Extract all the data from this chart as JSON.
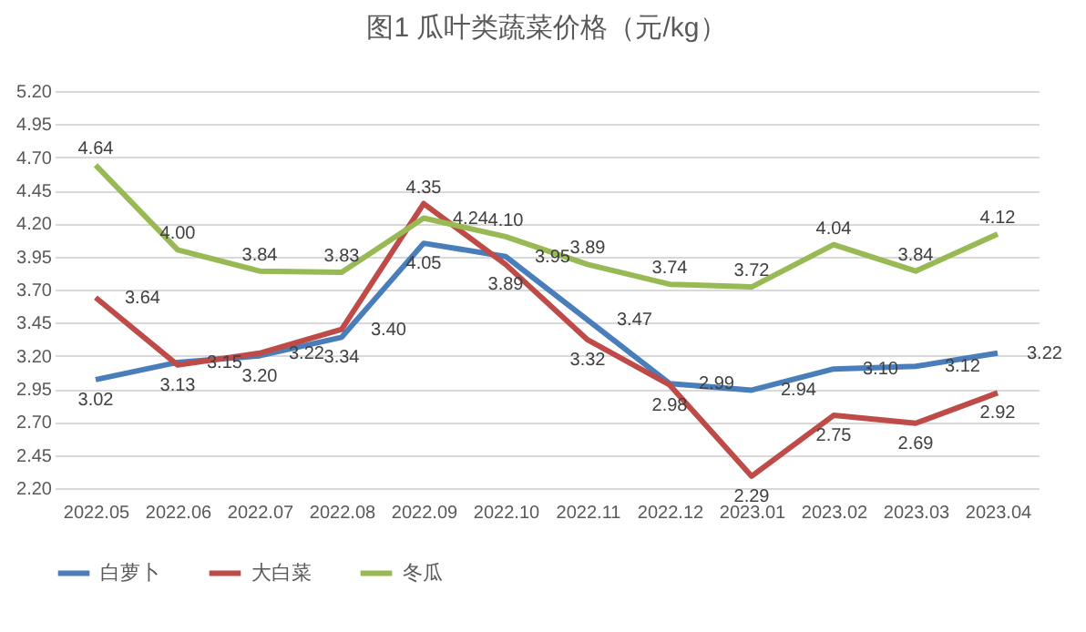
{
  "chart_data": {
    "type": "line",
    "title": "图1  瓜叶类蔬菜价格（元/kg）",
    "categories": [
      "2022.05",
      "2022.06",
      "2022.07",
      "2022.08",
      "2022.09",
      "2022.10",
      "2022.11",
      "2022.12",
      "2023.01",
      "2023.02",
      "2023.03",
      "2023.04"
    ],
    "series": [
      {
        "name": "白萝卜",
        "color": "#4a7ebb",
        "values": [
          3.02,
          3.15,
          3.2,
          3.34,
          4.05,
          3.95,
          3.47,
          2.99,
          2.94,
          3.1,
          3.12,
          3.22
        ],
        "value_labels": [
          "3.02",
          "3.15",
          "3.20",
          "3.34",
          "4.05",
          "3.95",
          "3.47",
          "2.99",
          "2.94",
          "3.10",
          "3.12",
          "3.22"
        ]
      },
      {
        "name": "大白菜",
        "color": "#be4b48",
        "values": [
          3.64,
          3.13,
          3.22,
          3.4,
          4.35,
          3.89,
          3.32,
          2.98,
          2.29,
          2.75,
          2.69,
          2.92
        ],
        "value_labels": [
          "3.64",
          "3.13",
          "3.22",
          "3.40",
          "4.35",
          "3.89",
          "3.32",
          "2.98",
          "2.29",
          "2.75",
          "2.69",
          "2.92"
        ]
      },
      {
        "name": "冬瓜",
        "color": "#98b954",
        "values": [
          4.64,
          4.0,
          3.84,
          3.83,
          4.24,
          4.1,
          3.89,
          3.74,
          3.72,
          4.04,
          3.84,
          4.12
        ],
        "value_labels": [
          "4.64",
          "4.00",
          "3.84",
          "3.83",
          "4.24",
          "4.10",
          "3.89",
          "3.74",
          "3.72",
          "4.04",
          "3.84",
          "4.12"
        ]
      }
    ],
    "ylim": [
      2.2,
      5.2
    ],
    "yticks": [
      {
        "value": 2.2,
        "label": "2.20"
      },
      {
        "value": 2.45,
        "label": "2.45"
      },
      {
        "value": 2.7,
        "label": "2.70"
      },
      {
        "value": 2.95,
        "label": "2.95"
      },
      {
        "value": 3.2,
        "label": "3.20"
      },
      {
        "value": 3.45,
        "label": "3.45"
      },
      {
        "value": 3.7,
        "label": "3.70"
      },
      {
        "value": 3.95,
        "label": "3.95"
      },
      {
        "value": 4.2,
        "label": "4.20"
      },
      {
        "value": 4.45,
        "label": "4.45"
      },
      {
        "value": 4.7,
        "label": "4.70"
      },
      {
        "value": 4.95,
        "label": "4.95"
      },
      {
        "value": 5.2,
        "label": "5.20"
      }
    ],
    "grid": "y",
    "legend": "bottom",
    "marker": "none",
    "line_style": "solid"
  }
}
